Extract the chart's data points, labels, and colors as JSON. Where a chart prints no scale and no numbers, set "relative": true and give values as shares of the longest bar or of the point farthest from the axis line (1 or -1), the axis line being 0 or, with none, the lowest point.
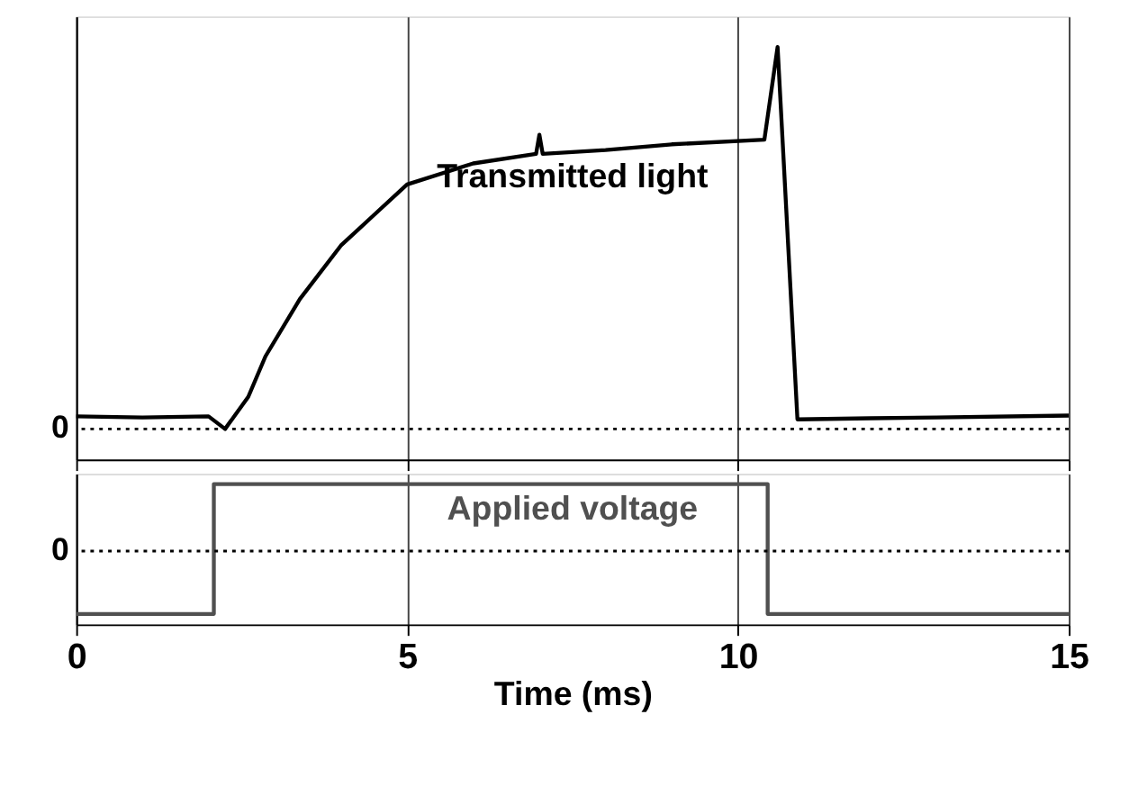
{
  "chart_data": [
    {
      "type": "line",
      "relative": true,
      "xlim": [
        0,
        15
      ],
      "xticks": [
        0,
        5,
        10,
        15
      ],
      "grid": "x",
      "tick_labels": false,
      "line_style": "solid",
      "marker": "none",
      "series": [
        {
          "name": "Transmitted light",
          "color": "#000000",
          "x": [
            0,
            1,
            2.0,
            2.25,
            2.6,
            2.86,
            3.38,
            4.0,
            4.5,
            5.0,
            6.0,
            6.95,
            7.0,
            7.05,
            8.0,
            9.0,
            10.4,
            10.6,
            10.9,
            12,
            13,
            15
          ],
          "values": [
            0.033,
            0.03,
            0.033,
            0,
            0.084,
            0.19,
            0.34,
            0.48,
            0.56,
            0.64,
            0.695,
            0.72,
            0.77,
            0.72,
            0.73,
            0.745,
            0.757,
            1.0,
            0.025,
            0.028,
            0.03,
            0.035
          ]
        }
      ],
      "ref_lines": [
        {
          "axis": "y",
          "value": 0,
          "label": "0",
          "color": "#000000",
          "line_style": "dotted"
        }
      ]
    },
    {
      "type": "line",
      "relative": true,
      "xlim": [
        0,
        15
      ],
      "xticks": [
        0,
        5,
        10,
        15
      ],
      "grid": "x",
      "tick_labels": "x",
      "xlabel": "Time (ms)",
      "line_style": "solid",
      "marker": "none",
      "series": [
        {
          "name": "Applied voltage",
          "color": "#505050",
          "x": [
            0,
            2.08,
            2.08,
            10.45,
            10.45,
            15
          ],
          "values": [
            -0.94,
            -0.94,
            1,
            1,
            -0.94,
            -0.94
          ]
        }
      ],
      "ref_lines": [
        {
          "axis": "y",
          "value": 0,
          "label": "0",
          "color": "#000000",
          "line_style": "dotted"
        }
      ]
    }
  ]
}
